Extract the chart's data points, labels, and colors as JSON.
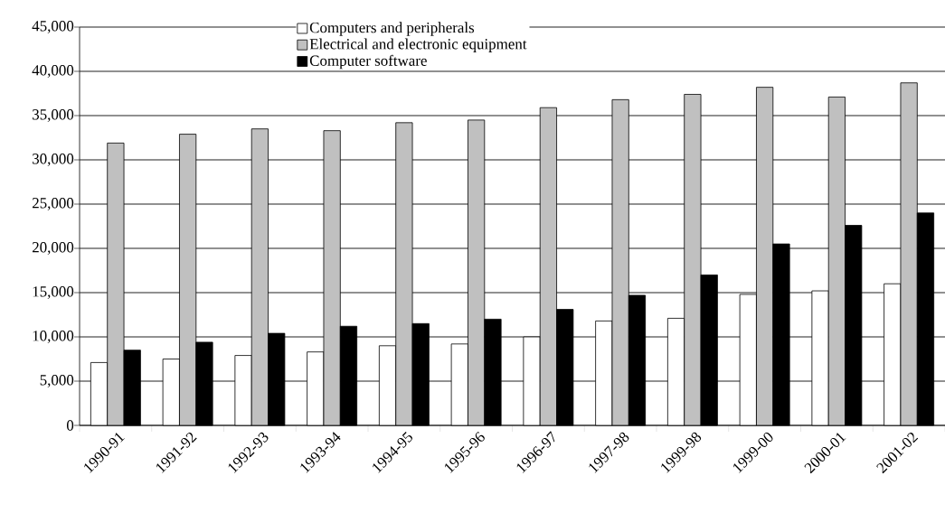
{
  "chart_data": {
    "type": "bar",
    "categories": [
      "1990-91",
      "1991-92",
      "1992-93",
      "1993-94",
      "1994-95",
      "1995-96",
      "1996-97",
      "1997-98",
      "1999-98",
      "1999-00",
      "2000-01",
      "2001-02"
    ],
    "series": [
      {
        "name": "Computers and peripherals",
        "color": "#ffffff",
        "values": [
          7100,
          7500,
          7900,
          8300,
          9000,
          9200,
          10000,
          11800,
          12100,
          14800,
          15200,
          16000
        ]
      },
      {
        "name": "Electrical and electronic equipment",
        "color": "#c0c0c0",
        "values": [
          31900,
          32900,
          33500,
          33300,
          34200,
          34500,
          35900,
          36800,
          37400,
          38200,
          37100,
          38700
        ]
      },
      {
        "name": "Computer software",
        "color": "#000000",
        "values": [
          8500,
          9400,
          10400,
          11200,
          11500,
          12000,
          13100,
          14700,
          17000,
          20500,
          22600,
          24000
        ]
      }
    ],
    "ylim": [
      0,
      45000
    ],
    "yticks": [
      0,
      {
        "value": 5000,
        "label": "5,000"
      },
      {
        "value": 10000,
        "label": "10,000"
      },
      {
        "value": 15000,
        "label": "15,000"
      },
      {
        "value": 20000,
        "label": "20,000"
      },
      {
        "value": 25000,
        "label": "25,000"
      },
      {
        "value": 30000,
        "label": "30,000"
      },
      {
        "value": 35000,
        "label": "35,000"
      },
      {
        "value": 40000,
        "label": "40,000"
      },
      {
        "value": 45000,
        "label": "45,000"
      }
    ],
    "grid": "y",
    "legend": "top"
  }
}
